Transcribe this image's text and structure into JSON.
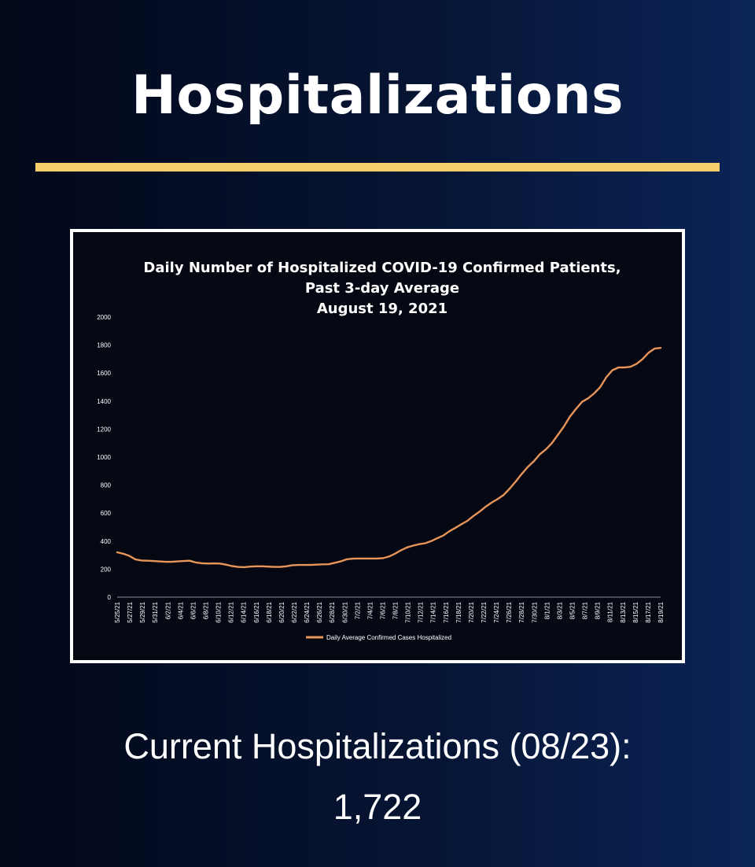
{
  "header": {
    "title": "Hospitalizations"
  },
  "colors": {
    "accent_rule": "#f5ce6a",
    "series_line": "#e8955a",
    "chart_background": "#050813"
  },
  "chart_data": {
    "type": "line",
    "title_lines": [
      "Daily Number of Hospitalized COVID-19 Confirmed Patients,",
      "Past 3-day Average",
      "August 19, 2021"
    ],
    "xlabel": "",
    "ylabel": "",
    "ylim": [
      0,
      2000
    ],
    "yticks": [
      0,
      200,
      400,
      600,
      800,
      1000,
      1200,
      1400,
      1600,
      1800,
      2000
    ],
    "x_tick_labels": [
      "5/25/21",
      "5/27/21",
      "5/29/21",
      "5/31/21",
      "6/2/21",
      "6/4/21",
      "6/6/21",
      "6/8/21",
      "6/10/21",
      "6/12/21",
      "6/14/21",
      "6/16/21",
      "6/18/21",
      "6/20/21",
      "6/22/21",
      "6/24/21",
      "6/26/21",
      "6/28/21",
      "6/30/21",
      "7/2/21",
      "7/4/21",
      "7/6/21",
      "7/8/21",
      "7/10/21",
      "7/12/21",
      "7/14/21",
      "7/16/21",
      "7/18/21",
      "7/20/21",
      "7/22/21",
      "7/24/21",
      "7/26/21",
      "7/28/21",
      "7/30/21",
      "8/1/21",
      "8/3/21",
      "8/5/21",
      "8/7/21",
      "8/9/21",
      "8/11/21",
      "8/13/21",
      "8/15/21",
      "8/17/21",
      "8/19/21"
    ],
    "grid": false,
    "legend_position": "bottom",
    "series": [
      {
        "name": "Daily Average Confirmed Cases Hospitalized",
        "x_start": "5/25/21",
        "x_end": "8/19/21",
        "values": [
          320,
          310,
          295,
          270,
          262,
          260,
          258,
          255,
          252,
          252,
          255,
          258,
          260,
          248,
          242,
          240,
          241,
          240,
          232,
          222,
          216,
          214,
          218,
          220,
          220,
          218,
          216,
          216,
          220,
          228,
          230,
          230,
          230,
          232,
          234,
          235,
          245,
          255,
          270,
          275,
          276,
          276,
          276,
          276,
          278,
          290,
          310,
          335,
          355,
          368,
          378,
          385,
          400,
          420,
          440,
          470,
          495,
          520,
          545,
          580,
          610,
          645,
          675,
          700,
          730,
          775,
          825,
          880,
          930,
          970,
          1020,
          1055,
          1100,
          1160,
          1220,
          1290,
          1345,
          1395,
          1420,
          1455,
          1500,
          1570,
          1620,
          1640,
          1640,
          1645,
          1665,
          1700,
          1745,
          1775,
          1780
        ]
      }
    ]
  },
  "footer": {
    "current_label": "Current Hospitalizations (08/23):",
    "current_value": "1,722"
  }
}
